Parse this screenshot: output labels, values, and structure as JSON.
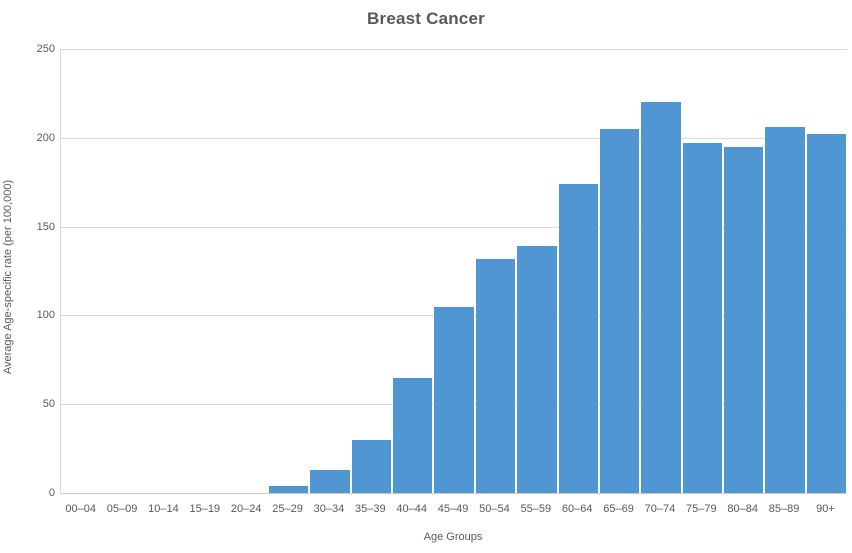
{
  "chart_data": {
    "type": "bar",
    "title": "Breast Cancer",
    "categories": [
      "00–04",
      "05–09",
      "10–14",
      "15–19",
      "20–24",
      "25–29",
      "30–34",
      "35–39",
      "40–44",
      "45–49",
      "50–54",
      "55–59",
      "60–64",
      "65–69",
      "70–74",
      "75–79",
      "80–84",
      "85–89",
      "90+"
    ],
    "values": [
      0,
      0,
      0,
      0,
      0,
      4,
      13,
      30,
      65,
      105,
      132,
      139,
      174,
      205,
      220,
      197,
      195,
      206,
      202
    ],
    "xlabel": "Age Groups",
    "ylabel": "Average Age-specific rate (per 100,000)",
    "ylim": [
      0,
      250
    ],
    "yticks": [
      0,
      50,
      100,
      150,
      200,
      250
    ],
    "grid": "horizontal",
    "legend_position": "none",
    "colors": {
      "bar": "#4f96d3",
      "gridline": "#d9d9d9",
      "axis_line": "#c9c9c9",
      "text": "#595959",
      "background": "#ffffff"
    }
  }
}
